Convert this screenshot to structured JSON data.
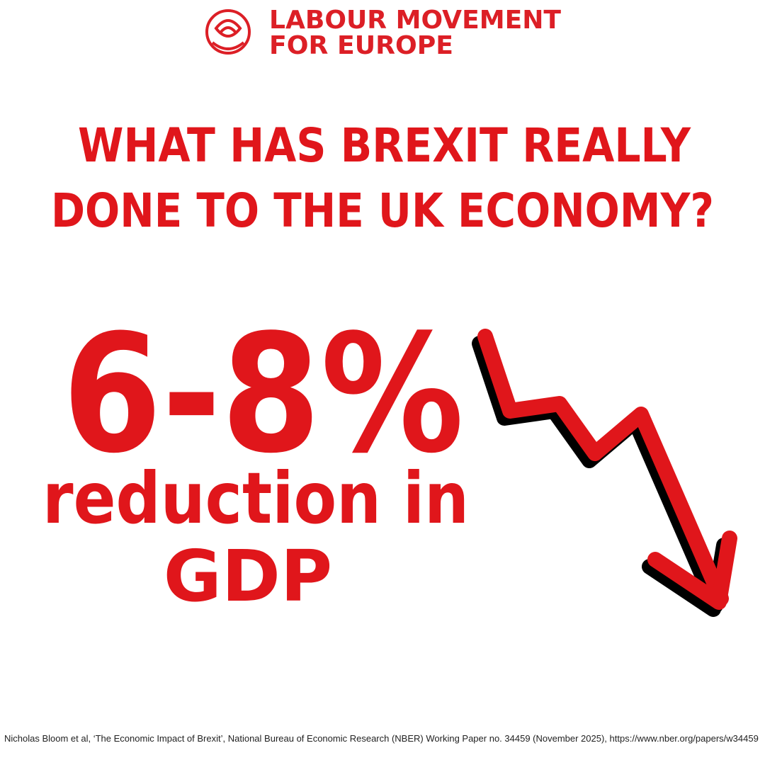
{
  "logo": {
    "lines": [
      "LABOUR MOVEMENT",
      "FOR EUROPE"
    ]
  },
  "headline": {
    "lines": [
      "WHAT HAS BREXIT REALLY",
      "DONE TO THE UK ECONOMY?"
    ]
  },
  "stat": {
    "figure": "6-8%",
    "lines": [
      "reduction in",
      "GDP"
    ]
  },
  "citation": "Nicholas Bloom et al, ‘The Economic Impact of Brexit’, National Bureau of Economic Research (NBER) Working Paper no. 34459 (November 2025), https://www.nber.org/papers/w34459"
}
